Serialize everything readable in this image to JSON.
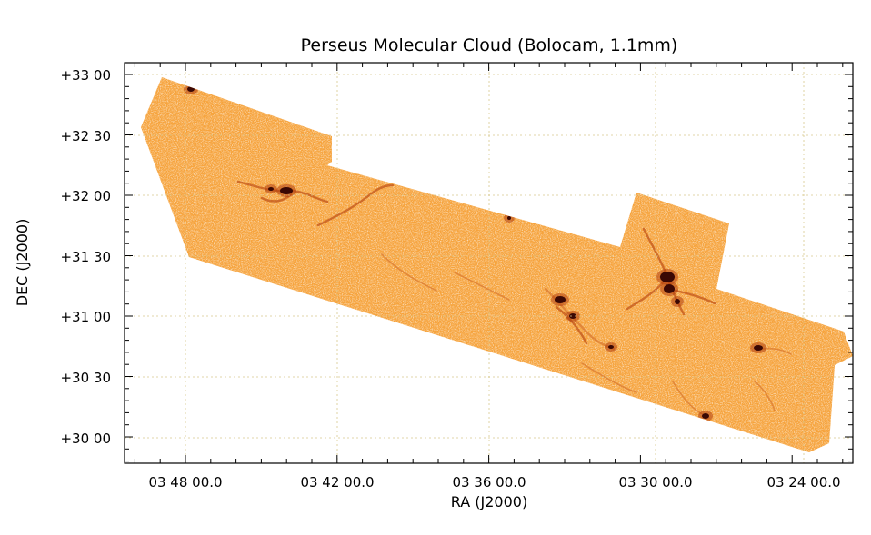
{
  "figure": {
    "title": "Perseus Molecular Cloud (Bolocam, 1.1mm)",
    "xlabel": "RA (J2000)",
    "ylabel": "DEC (J2000)",
    "x_ticks": [
      "03 48 00.0",
      "03 42 00.0",
      "03 36 00.0",
      "03 30 00.0",
      "03 24 00.0"
    ],
    "y_ticks": [
      "+33 00",
      "+32 30",
      "+32 00",
      "+31 30",
      "+31 00",
      "+30 30",
      "+30 00"
    ],
    "grid": true,
    "map_color": "#f6a33c",
    "peak_color": "#3a0804"
  }
}
